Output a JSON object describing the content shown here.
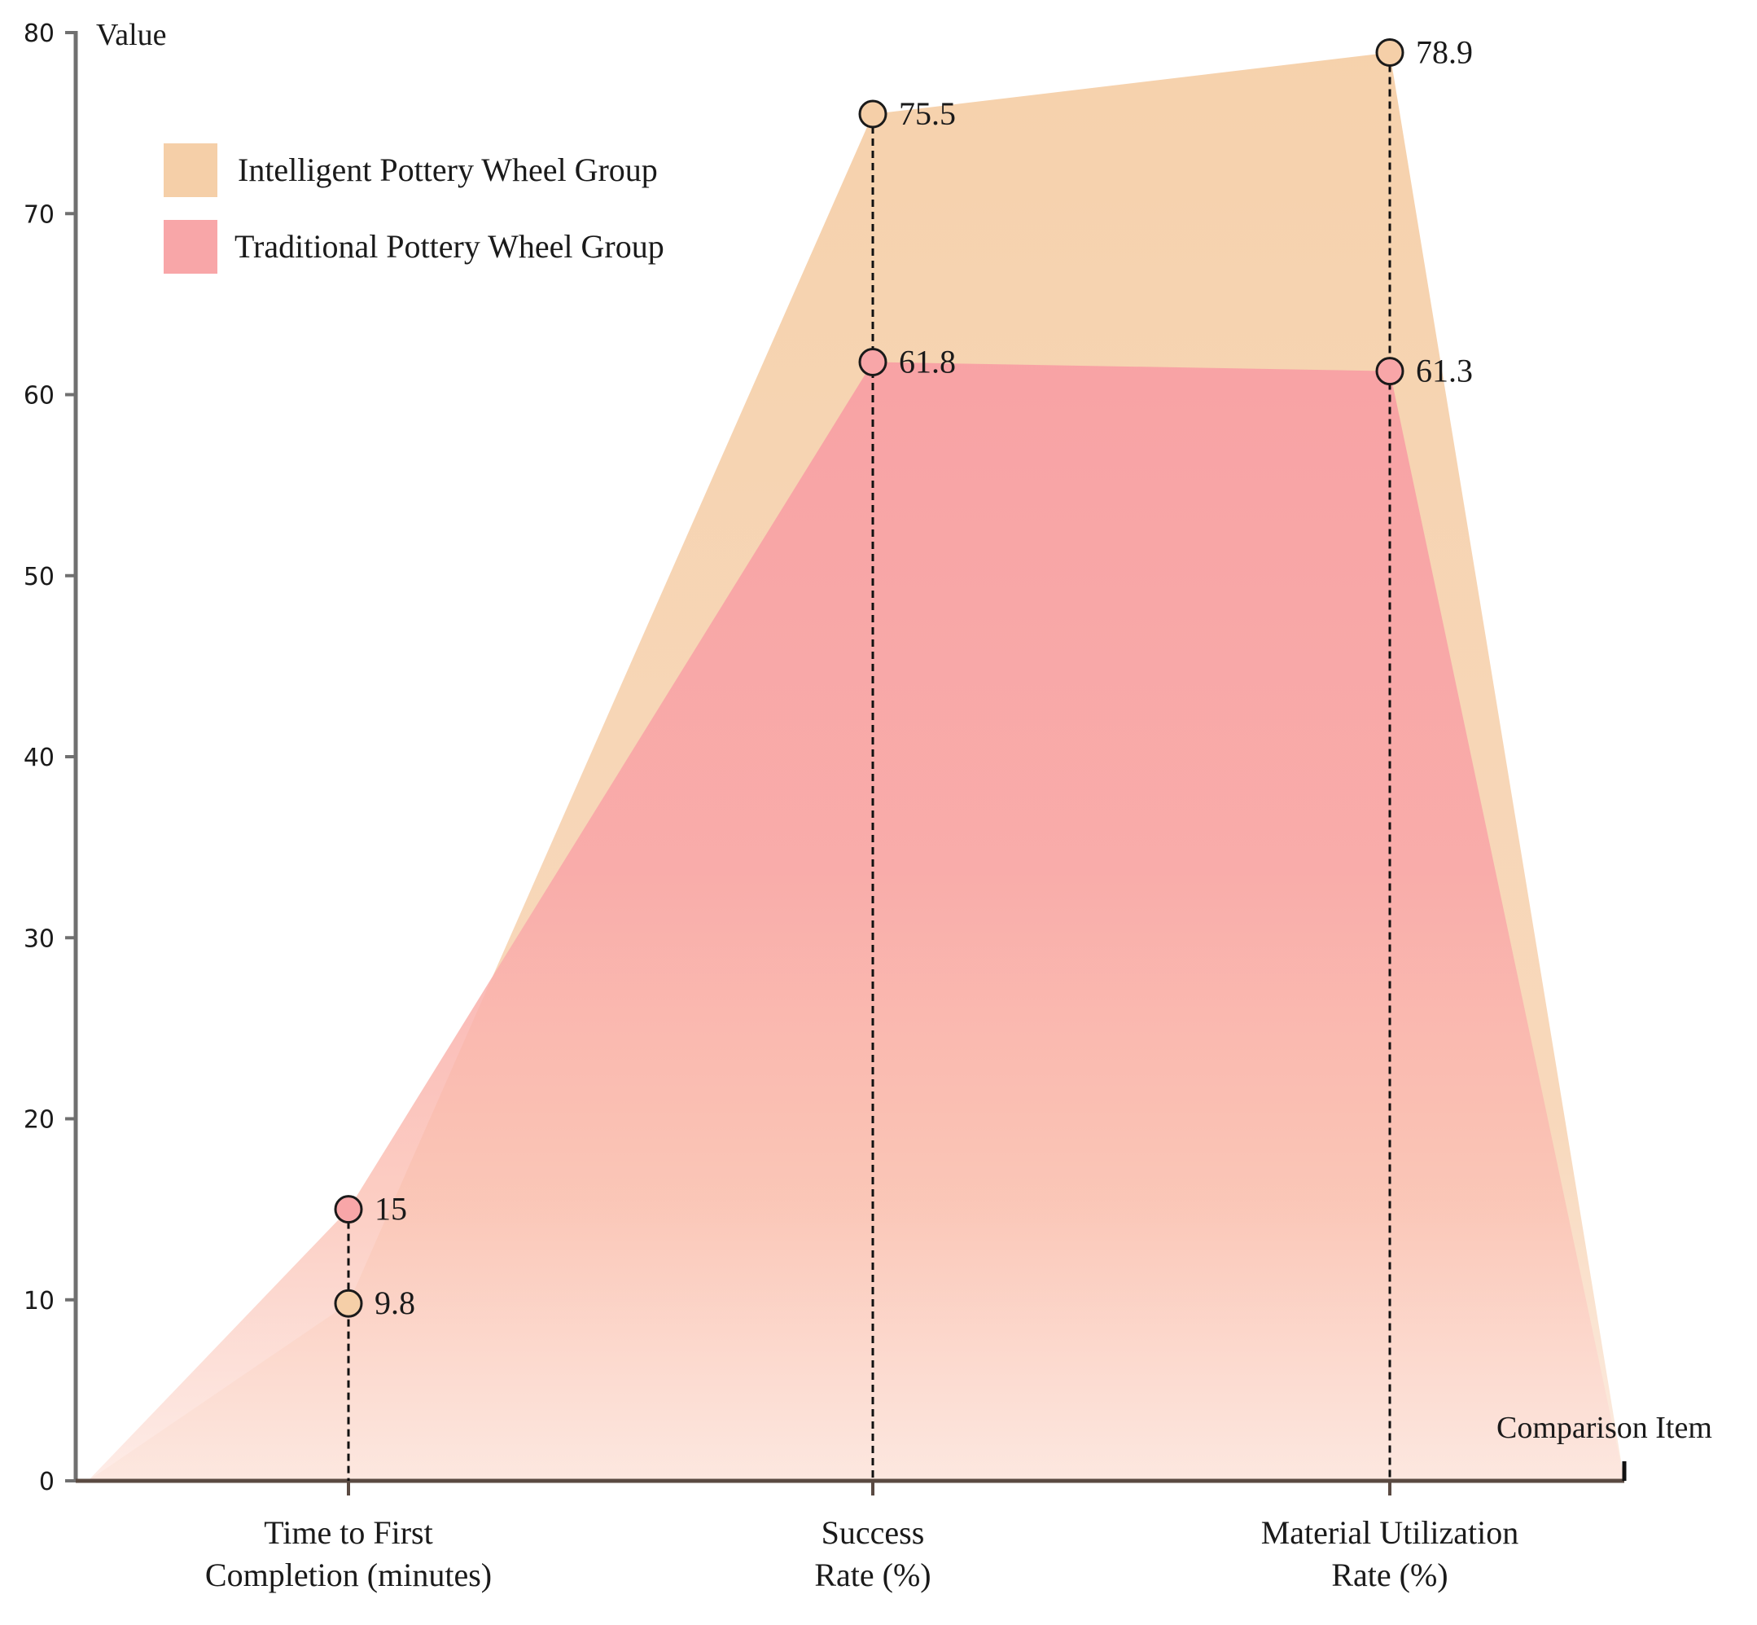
{
  "chart_data": {
    "type": "area",
    "title": "",
    "ylabel": "Value",
    "xlabel": "Comparison Item",
    "ylim": [
      0,
      80
    ],
    "yticks": [
      0,
      10,
      20,
      30,
      40,
      50,
      60,
      70,
      80
    ],
    "categories": [
      [
        "Time to First",
        "Completion (minutes)"
      ],
      [
        "Success",
        "Rate (%)"
      ],
      [
        "Material Utilization",
        "Rate (%)"
      ]
    ],
    "series": [
      {
        "name": "Intelligent Pottery Wheel Group",
        "values": [
          9.8,
          75.5,
          78.9
        ],
        "labels": [
          "9.8",
          "75.5",
          "78.9"
        ],
        "color": "#f5cfa8"
      },
      {
        "name": "Traditional Pottery Wheel Group",
        "values": [
          15,
          61.8,
          61.3
        ],
        "labels": [
          "15",
          "61.8",
          "61.3"
        ],
        "color": "#f8a6a8"
      }
    ],
    "legend_position": "top-left",
    "grid": false
  }
}
